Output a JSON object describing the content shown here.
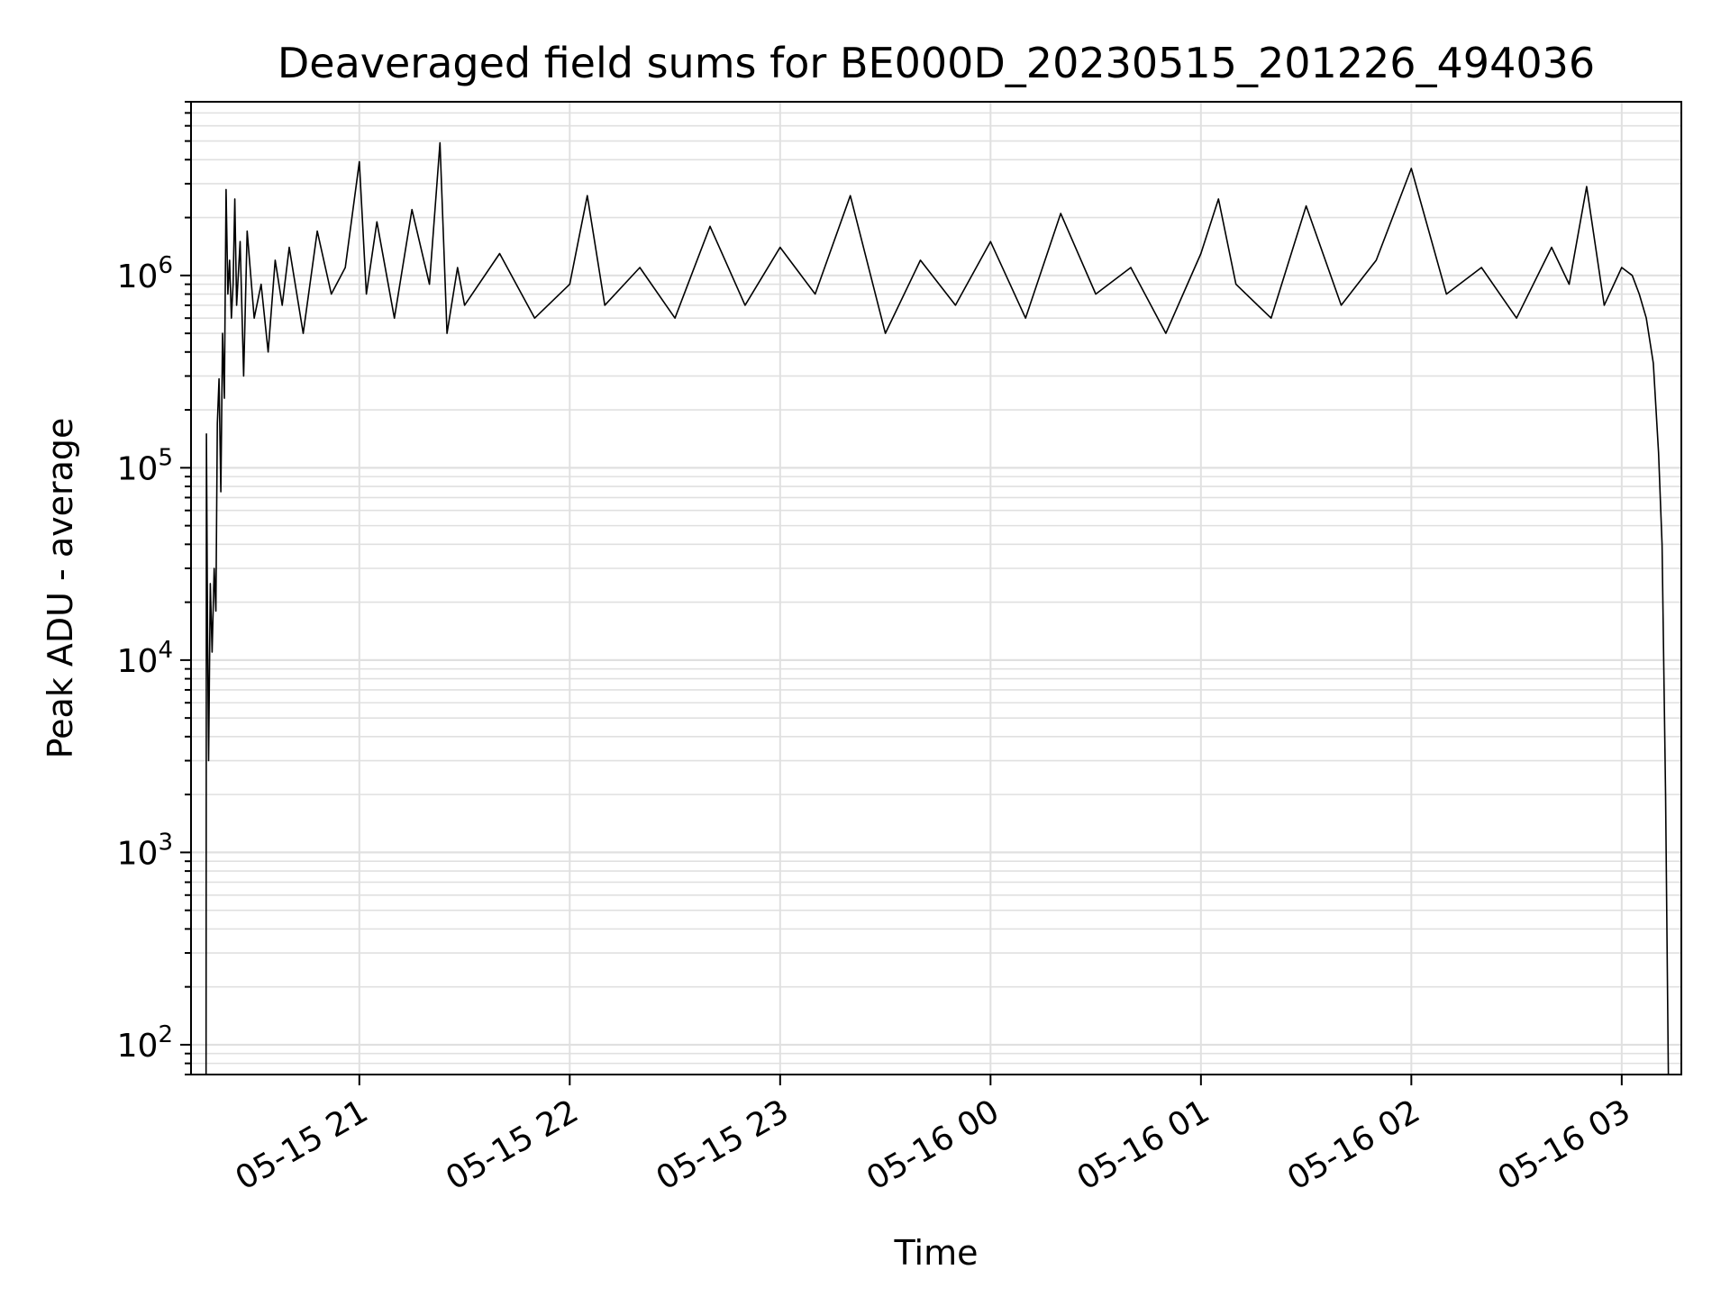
{
  "chart_data": {
    "type": "line",
    "title": "Deaveraged field sums for BE000D_20230515_201226_494036",
    "xlabel": "Time",
    "ylabel": "Peak ADU - average",
    "yscale": "log",
    "grid": true,
    "grid_minor": true,
    "line_color": "#000000",
    "grid_color": "#e0e0e0",
    "xlim": [
      "2023-05-15 20:12",
      "2023-05-16 03:17"
    ],
    "ylim": [
      70,
      8000000
    ],
    "x_ticks": [
      {
        "label": "05-15 21",
        "t": "2023-05-15 21:00"
      },
      {
        "label": "05-15 22",
        "t": "2023-05-15 22:00"
      },
      {
        "label": "05-15 23",
        "t": "2023-05-15 23:00"
      },
      {
        "label": "05-16 00",
        "t": "2023-05-16 00:00"
      },
      {
        "label": "05-16 01",
        "t": "2023-05-16 01:00"
      },
      {
        "label": "05-16 02",
        "t": "2023-05-16 02:00"
      },
      {
        "label": "05-16 03",
        "t": "2023-05-16 03:00"
      }
    ],
    "y_ticks": [
      {
        "base": "10",
        "exp": "2",
        "value": 100
      },
      {
        "base": "10",
        "exp": "3",
        "value": 1000
      },
      {
        "base": "10",
        "exp": "4",
        "value": 10000
      },
      {
        "base": "10",
        "exp": "5",
        "value": 100000
      },
      {
        "base": "10",
        "exp": "6",
        "value": 1000000
      }
    ],
    "series": [
      {
        "x": [
          "2023-05-15 20:16:18",
          "2023-05-15 20:16:24",
          "2023-05-15 20:16:42",
          "2023-05-15 20:17:00",
          "2023-05-15 20:17:30",
          "2023-05-15 20:18:00",
          "2023-05-15 20:18:36",
          "2023-05-15 20:19:06",
          "2023-05-15 20:19:30",
          "2023-05-15 20:20:00",
          "2023-05-15 20:20:30",
          "2023-05-15 20:21:00",
          "2023-05-15 20:21:30",
          "2023-05-15 20:22:00",
          "2023-05-15 20:22:30",
          "2023-05-15 20:23:00",
          "2023-05-15 20:23:30",
          "2023-05-15 20:24:00",
          "2023-05-15 20:24:30",
          "2023-05-15 20:25:00",
          "2023-05-15 20:26:00",
          "2023-05-15 20:27:00",
          "2023-05-15 20:28:00",
          "2023-05-15 20:30:00",
          "2023-05-15 20:32:00",
          "2023-05-15 20:34:00",
          "2023-05-15 20:36:00",
          "2023-05-15 20:38:00",
          "2023-05-15 20:40:00",
          "2023-05-15 20:44:00",
          "2023-05-15 20:48:00",
          "2023-05-15 20:52:00",
          "2023-05-15 20:56:00",
          "2023-05-15 21:00:00",
          "2023-05-15 21:02:00",
          "2023-05-15 21:05:00",
          "2023-05-15 21:10:00",
          "2023-05-15 21:15:00",
          "2023-05-15 21:20:00",
          "2023-05-15 21:23:00",
          "2023-05-15 21:25:00",
          "2023-05-15 21:28:00",
          "2023-05-15 21:30:00",
          "2023-05-15 21:40:00",
          "2023-05-15 21:50:00",
          "2023-05-15 22:00:00",
          "2023-05-15 22:05:00",
          "2023-05-15 22:10:00",
          "2023-05-15 22:20:00",
          "2023-05-15 22:30:00",
          "2023-05-15 22:40:00",
          "2023-05-15 22:50:00",
          "2023-05-15 23:00:00",
          "2023-05-15 23:10:00",
          "2023-05-15 23:20:00",
          "2023-05-15 23:30:00",
          "2023-05-15 23:40:00",
          "2023-05-15 23:50:00",
          "2023-05-16 00:00:00",
          "2023-05-16 00:10:00",
          "2023-05-16 00:20:00",
          "2023-05-16 00:30:00",
          "2023-05-16 00:40:00",
          "2023-05-16 00:50:00",
          "2023-05-16 01:00:00",
          "2023-05-16 01:05:00",
          "2023-05-16 01:10:00",
          "2023-05-16 01:20:00",
          "2023-05-16 01:30:00",
          "2023-05-16 01:40:00",
          "2023-05-16 01:50:00",
          "2023-05-16 02:00:00",
          "2023-05-16 02:10:00",
          "2023-05-16 02:20:00",
          "2023-05-16 02:30:00",
          "2023-05-16 02:40:00",
          "2023-05-16 02:45:00",
          "2023-05-16 02:50:00",
          "2023-05-16 02:55:00",
          "2023-05-16 03:00:00",
          "2023-05-16 03:03:00",
          "2023-05-16 03:05:00",
          "2023-05-16 03:07:00",
          "2023-05-16 03:09:00",
          "2023-05-16 03:10:30",
          "2023-05-16 03:11:30",
          "2023-05-16 03:12:30",
          "2023-05-16 03:13:18"
        ],
        "y": [
          70,
          150000,
          15000,
          3000,
          25000,
          11000,
          30000,
          18000,
          170000,
          290000,
          75000,
          500000,
          230000,
          2800000,
          800000,
          1200000,
          600000,
          900000,
          2500000,
          700000,
          1500000,
          300000,
          1700000,
          600000,
          900000,
          400000,
          1200000,
          700000,
          1400000,
          500000,
          1700000,
          800000,
          1100000,
          3900000,
          800000,
          1900000,
          600000,
          2200000,
          900000,
          4900000,
          500000,
          1100000,
          700000,
          1300000,
          600000,
          900000,
          2600000,
          700000,
          1100000,
          600000,
          1800000,
          700000,
          1400000,
          800000,
          2600000,
          500000,
          1200000,
          700000,
          1500000,
          600000,
          2100000,
          800000,
          1100000,
          500000,
          1300000,
          2500000,
          900000,
          600000,
          2300000,
          700000,
          1200000,
          3600000,
          800000,
          1100000,
          600000,
          1400000,
          900000,
          2900000,
          700000,
          1100000,
          1000000,
          800000,
          600000,
          350000,
          120000,
          40000,
          2000,
          70
        ]
      }
    ]
  }
}
